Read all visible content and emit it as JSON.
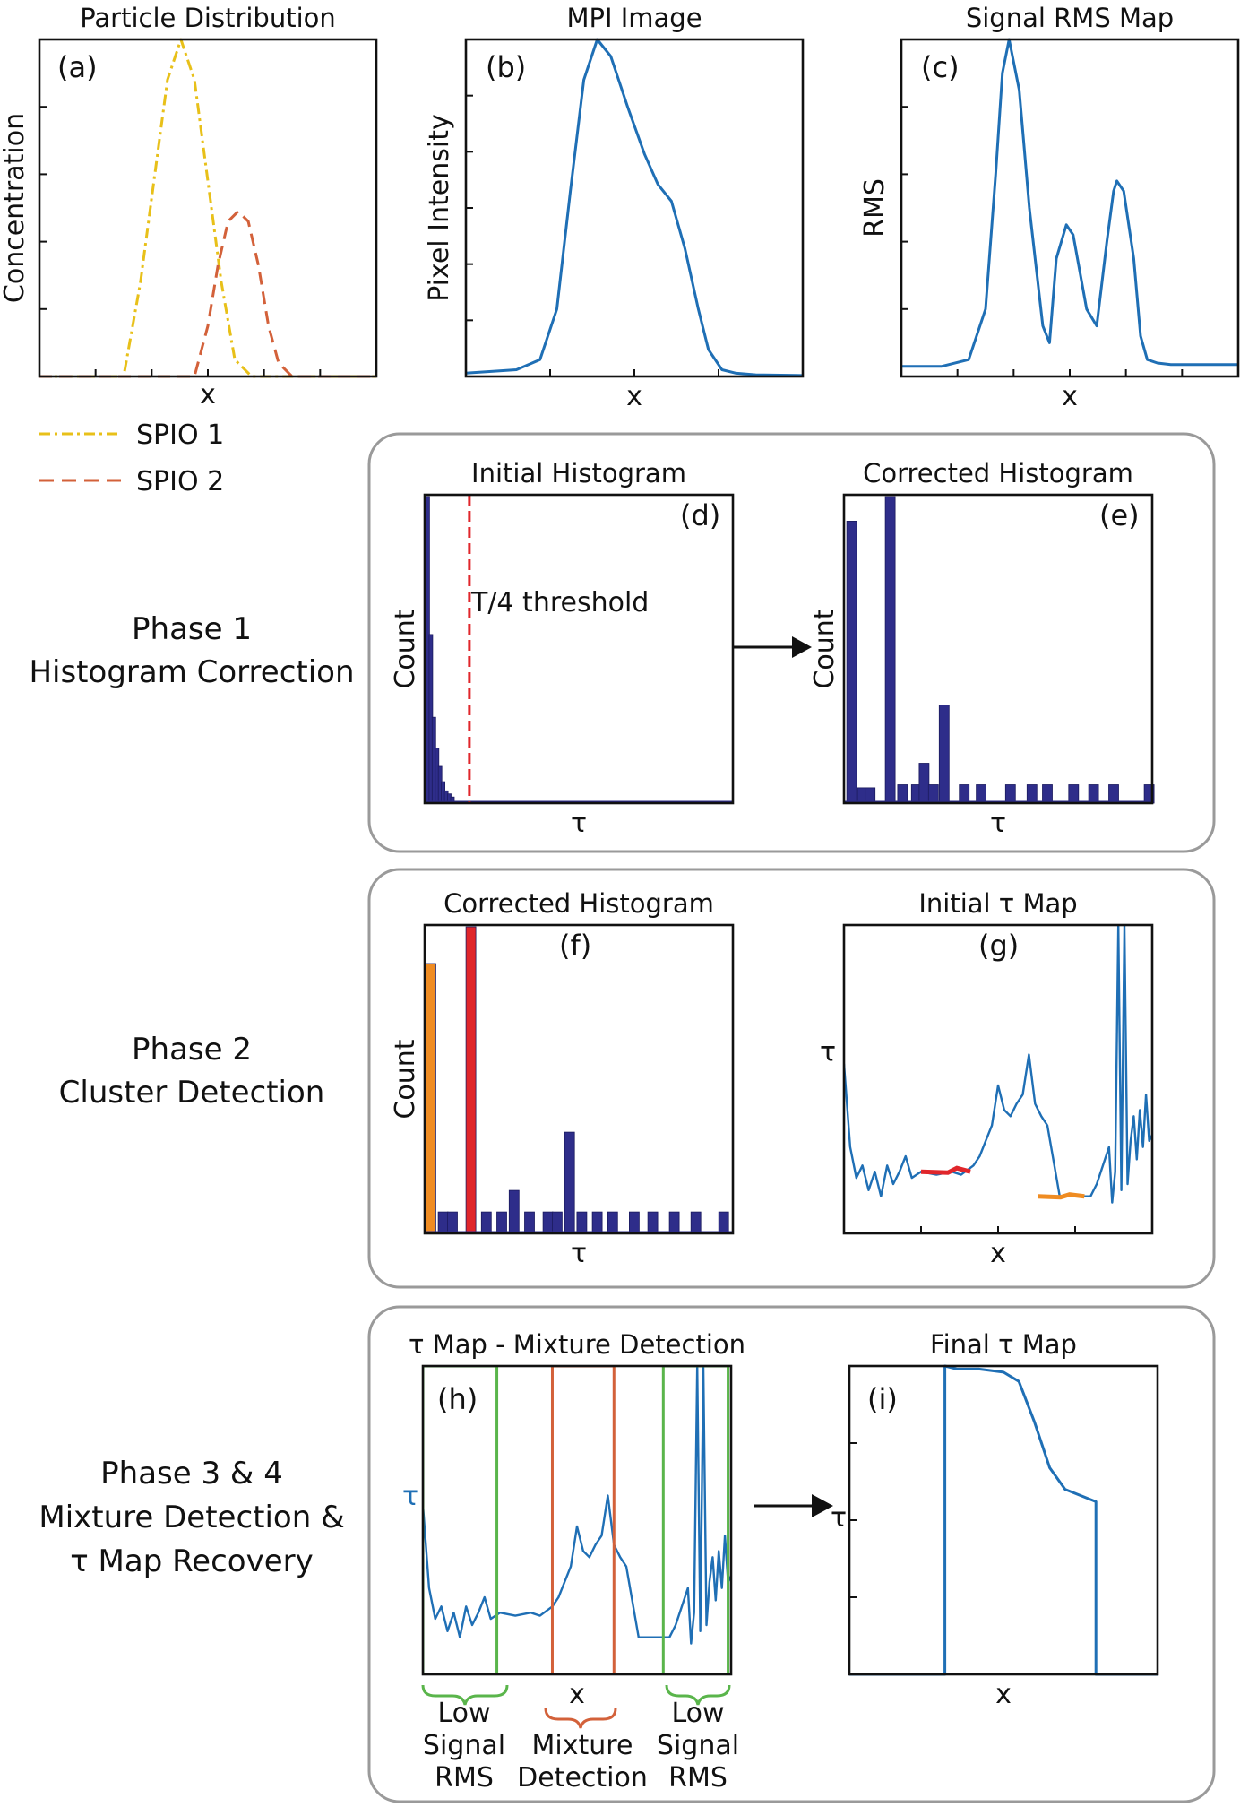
{
  "panels": {
    "a": {
      "tag": "(a)",
      "title": "Particle Distribution",
      "ylabel": "Concentration",
      "xlabel": "x"
    },
    "b": {
      "tag": "(b)",
      "title": "MPI Image",
      "ylabel": "Pixel Intensity",
      "xlabel": "x"
    },
    "c": {
      "tag": "(c)",
      "title": "Signal RMS Map",
      "ylabel": "RMS",
      "xlabel": "x"
    },
    "d": {
      "tag": "(d)",
      "title": "Initial Histogram",
      "ylabel": "Count",
      "xlabel": "τ",
      "annotation": "T/4 threshold"
    },
    "e": {
      "tag": "(e)",
      "title": "Corrected Histogram",
      "ylabel": "Count",
      "xlabel": "τ"
    },
    "f": {
      "tag": "(f)",
      "title": "Corrected Histogram",
      "ylabel": "Count",
      "xlabel": "τ"
    },
    "g": {
      "tag": "(g)",
      "title": "Initial  τ Map",
      "ylabel": "τ",
      "xlabel": "x"
    },
    "h": {
      "tag": "(h)",
      "title": "τ Map - Mixture Detection",
      "ylabel": "τ",
      "xlabel": "x"
    },
    "i": {
      "tag": "(i)",
      "title": "Final τ Map",
      "ylabel": "τ",
      "xlabel": "x"
    }
  },
  "legend": [
    {
      "label": "SPIO 1",
      "color": "#e8c019",
      "dash": "dash-dot"
    },
    {
      "label": "SPIO 2",
      "color": "#d3613a",
      "dash": "dashed"
    }
  ],
  "phases": [
    {
      "line1": "Phase 1",
      "line2": "Histogram Correction"
    },
    {
      "line1": "Phase 2",
      "line2": "Cluster Detection"
    },
    {
      "line1": "Phase 3 & 4",
      "line2": "Mixture Detection &",
      "line3": "τ Map Recovery"
    }
  ],
  "regions": [
    {
      "line1": "Low",
      "line2": "Signal",
      "line3": "RMS",
      "color": "#5ab54b"
    },
    {
      "line1": "Mixture",
      "line2": "Detection",
      "color": "#d3613a"
    },
    {
      "line1": "Low",
      "line2": "Signal",
      "line3": "RMS",
      "color": "#5ab54b"
    }
  ],
  "colors": {
    "curve": "#1f6fb5",
    "spio1": "#e8c019",
    "spio2": "#d3613a",
    "bar": "#2e2d8a",
    "threshold": "#e0262b",
    "cluster1": "#ef8c22",
    "cluster2": "#e0262b",
    "lowrms_box": "#5ab54b",
    "mixture_box": "#d3613a"
  },
  "chart_data": [
    {
      "id": "a",
      "type": "line",
      "series": [
        {
          "name": "SPIO 1",
          "x": [
            0,
            0.25,
            0.3,
            0.34,
            0.38,
            0.42,
            0.46,
            0.5,
            0.54,
            0.58,
            0.63,
            1
          ],
          "values": [
            0,
            0,
            0.28,
            0.58,
            0.88,
            1.0,
            0.88,
            0.58,
            0.28,
            0.05,
            0,
            0
          ]
        },
        {
          "name": "SPIO 2",
          "x": [
            0,
            0.46,
            0.5,
            0.53,
            0.56,
            0.59,
            0.62,
            0.65,
            0.68,
            0.71,
            0.75,
            1
          ],
          "values": [
            0,
            0,
            0.15,
            0.33,
            0.46,
            0.49,
            0.46,
            0.33,
            0.15,
            0.04,
            0,
            0
          ]
        }
      ]
    },
    {
      "id": "b",
      "type": "line",
      "x": [
        0,
        0.15,
        0.22,
        0.27,
        0.31,
        0.35,
        0.39,
        0.43,
        0.48,
        0.53,
        0.57,
        0.61,
        0.65,
        0.69,
        0.72,
        0.76,
        0.8,
        0.86,
        1
      ],
      "values": [
        0.01,
        0.02,
        0.05,
        0.2,
        0.55,
        0.88,
        1.0,
        0.95,
        0.8,
        0.66,
        0.57,
        0.52,
        0.38,
        0.2,
        0.08,
        0.02,
        0.01,
        0.005,
        0.003
      ]
    },
    {
      "id": "c",
      "type": "line",
      "x": [
        0,
        0.12,
        0.2,
        0.25,
        0.28,
        0.3,
        0.32,
        0.35,
        0.38,
        0.42,
        0.44,
        0.46,
        0.49,
        0.51,
        0.55,
        0.58,
        0.61,
        0.63,
        0.64,
        0.66,
        0.69,
        0.71,
        0.73,
        0.76,
        0.8,
        1
      ],
      "values": [
        0.03,
        0.03,
        0.05,
        0.2,
        0.6,
        0.9,
        1.0,
        0.85,
        0.5,
        0.15,
        0.1,
        0.35,
        0.45,
        0.42,
        0.2,
        0.15,
        0.4,
        0.55,
        0.58,
        0.55,
        0.35,
        0.12,
        0.05,
        0.04,
        0.035,
        0.035
      ]
    },
    {
      "id": "d",
      "type": "bar",
      "x": [
        0.01,
        0.02,
        0.03,
        0.04,
        0.05,
        0.06,
        0.07,
        0.08,
        0.09
      ],
      "values": [
        1.0,
        0.55,
        0.28,
        0.18,
        0.12,
        0.07,
        0.04,
        0.03,
        0.02
      ],
      "threshold": 0.145
    },
    {
      "id": "e",
      "type": "bar",
      "x": [
        0.025,
        0.06,
        0.085,
        0.15,
        0.19,
        0.235,
        0.26,
        0.29,
        0.325,
        0.39,
        0.445,
        0.54,
        0.61,
        0.66,
        0.745,
        0.81,
        0.875,
        0.99
      ],
      "values": [
        0.92,
        0.05,
        0.05,
        1.0,
        0.06,
        0.06,
        0.13,
        0.06,
        0.32,
        0.06,
        0.06,
        0.06,
        0.06,
        0.06,
        0.06,
        0.06,
        0.06,
        0.06
      ]
    },
    {
      "id": "f",
      "type": "bar",
      "x": [
        0.02,
        0.06,
        0.09,
        0.15,
        0.2,
        0.25,
        0.29,
        0.34,
        0.4,
        0.43,
        0.47,
        0.51,
        0.56,
        0.61,
        0.68,
        0.74,
        0.81,
        0.88,
        0.97
      ],
      "values": [
        0.88,
        0.07,
        0.07,
        1.0,
        0.07,
        0.07,
        0.14,
        0.07,
        0.07,
        0.07,
        0.33,
        0.07,
        0.07,
        0.07,
        0.07,
        0.07,
        0.07,
        0.07,
        0.07
      ],
      "clusters": [
        {
          "x": 0.02,
          "color": "cluster1"
        },
        {
          "x": 0.15,
          "color": "cluster2"
        }
      ]
    },
    {
      "id": "g",
      "type": "line",
      "x": [
        0,
        0.02,
        0.04,
        0.06,
        0.08,
        0.1,
        0.12,
        0.14,
        0.16,
        0.18,
        0.2,
        0.22,
        0.25,
        0.3,
        0.35,
        0.38,
        0.42,
        0.44,
        0.46,
        0.48,
        0.5,
        0.52,
        0.54,
        0.56,
        0.58,
        0.6,
        0.62,
        0.64,
        0.66,
        0.7,
        0.75,
        0.8,
        0.82,
        0.84,
        0.86,
        0.87,
        0.88,
        0.89,
        0.9,
        0.91,
        0.92,
        0.93,
        0.94,
        0.95,
        0.96,
        0.97,
        0.98,
        0.99,
        1
      ],
      "values": [
        0.55,
        0.28,
        0.18,
        0.22,
        0.14,
        0.2,
        0.12,
        0.22,
        0.16,
        0.2,
        0.25,
        0.18,
        0.2,
        0.19,
        0.2,
        0.19,
        0.22,
        0.25,
        0.3,
        0.35,
        0.48,
        0.4,
        0.38,
        0.42,
        0.45,
        0.58,
        0.42,
        0.38,
        0.35,
        0.12,
        0.12,
        0.12,
        0.16,
        0.22,
        0.28,
        0.1,
        0.2,
        1.0,
        0.14,
        1.0,
        0.16,
        0.3,
        0.38,
        0.24,
        0.4,
        0.28,
        0.45,
        0.3,
        0.32
      ]
    },
    {
      "id": "h",
      "type": "line",
      "x": [
        0,
        0.02,
        0.04,
        0.06,
        0.08,
        0.1,
        0.12,
        0.14,
        0.16,
        0.18,
        0.2,
        0.22,
        0.25,
        0.3,
        0.35,
        0.38,
        0.42,
        0.44,
        0.46,
        0.48,
        0.5,
        0.52,
        0.54,
        0.56,
        0.58,
        0.6,
        0.62,
        0.64,
        0.66,
        0.7,
        0.75,
        0.8,
        0.82,
        0.84,
        0.86,
        0.87,
        0.88,
        0.89,
        0.9,
        0.91,
        0.92,
        0.93,
        0.94,
        0.95,
        0.96,
        0.97,
        0.98,
        0.99,
        1
      ],
      "values": [
        0.55,
        0.28,
        0.18,
        0.22,
        0.14,
        0.2,
        0.12,
        0.22,
        0.16,
        0.2,
        0.25,
        0.18,
        0.2,
        0.19,
        0.2,
        0.19,
        0.22,
        0.25,
        0.3,
        0.35,
        0.48,
        0.4,
        0.38,
        0.42,
        0.45,
        0.58,
        0.42,
        0.38,
        0.35,
        0.12,
        0.12,
        0.12,
        0.16,
        0.22,
        0.28,
        0.1,
        0.2,
        1.0,
        0.14,
        1.0,
        0.16,
        0.3,
        0.38,
        0.24,
        0.4,
        0.28,
        0.45,
        0.3,
        0.32
      ],
      "regions": [
        {
          "x0": 0.0,
          "x1": 0.24,
          "color": "lowrms_box"
        },
        {
          "x0": 0.42,
          "x1": 0.62,
          "color": "mixture_box"
        },
        {
          "x0": 0.78,
          "x1": 0.99,
          "color": "lowrms_box"
        }
      ]
    },
    {
      "id": "i",
      "type": "line",
      "x": [
        0,
        0.31,
        0.31,
        0.35,
        0.42,
        0.5,
        0.55,
        0.6,
        0.65,
        0.7,
        0.75,
        0.8,
        0.8,
        1
      ],
      "values": [
        0,
        0,
        1.0,
        0.99,
        0.99,
        0.98,
        0.95,
        0.82,
        0.67,
        0.6,
        0.58,
        0.56,
        0,
        0
      ]
    }
  ]
}
